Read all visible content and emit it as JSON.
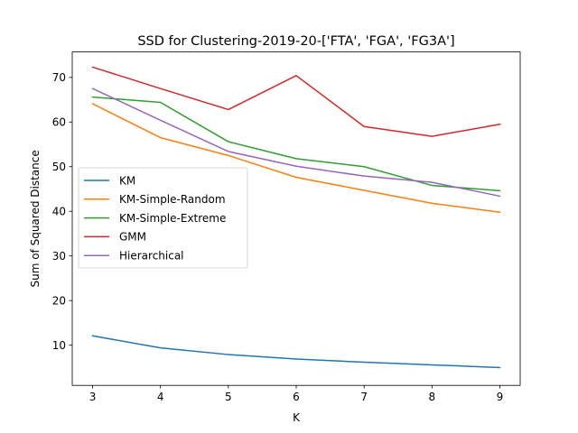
{
  "chart_data": {
    "type": "line",
    "title": "SSD for Clustering-2019-20-['FTA', 'FGA', 'FG3A']",
    "xlabel": "K",
    "ylabel": "Sum of Squared Distance",
    "x": [
      3,
      4,
      5,
      6,
      7,
      8,
      9
    ],
    "xlim": [
      2.7,
      9.3
    ],
    "ylim": [
      1,
      75.7
    ],
    "xticks": [
      "3",
      "4",
      "5",
      "6",
      "7",
      "8",
      "9"
    ],
    "yticks": [
      "10",
      "20",
      "30",
      "40",
      "50",
      "60",
      "70"
    ],
    "ytick_values": [
      10,
      20,
      30,
      40,
      50,
      60,
      70
    ],
    "grid": false,
    "legend_position": "center-left",
    "series": [
      {
        "name": "KM",
        "color": "#1f77b4",
        "values": [
          12.1,
          9.4,
          7.9,
          6.9,
          6.2,
          5.6,
          5.0
        ]
      },
      {
        "name": "KM-Simple-Random",
        "color": "#ff7f0e",
        "values": [
          64.1,
          56.5,
          52.5,
          47.6,
          44.7,
          41.8,
          39.8
        ]
      },
      {
        "name": "KM-Simple-Extreme",
        "color": "#2ca02c",
        "values": [
          65.6,
          64.4,
          55.6,
          51.8,
          50.0,
          45.8,
          44.6
        ]
      },
      {
        "name": "GMM",
        "color": "#d62728",
        "values": [
          72.3,
          67.5,
          62.8,
          70.4,
          59.0,
          56.8,
          59.5
        ]
      },
      {
        "name": "Hierarchical",
        "color": "#9467bd",
        "values": [
          67.5,
          60.4,
          53.4,
          50.1,
          47.9,
          46.5,
          43.4
        ]
      }
    ]
  }
}
